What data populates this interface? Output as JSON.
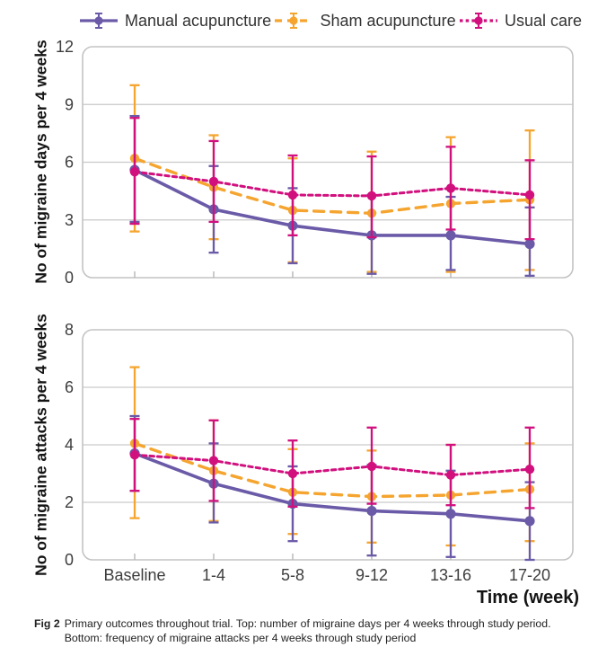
{
  "legend": [
    {
      "label": "Manual acupuncture",
      "color": "#6A5AA7",
      "style": "solid"
    },
    {
      "label": "Sham acupuncture",
      "color": "#F5A52F",
      "style": "dashed"
    },
    {
      "label": "Usual care",
      "color": "#D1107E",
      "style": "dotted"
    }
  ],
  "xlabel": "Time (week)",
  "caption": {
    "tag": "Fig 2",
    "text": "Primary outcomes throughout trial. Top: number of migraine days per 4 weeks through study period. Bottom: frequency of migraine attacks per 4 weeks through study period"
  },
  "colors": {
    "manual": "#6A5AA7",
    "sham": "#F5A52F",
    "usual": "#D1107E",
    "grid": "#c9c9c9",
    "border": "#c3c3c3"
  },
  "chart_data": [
    {
      "type": "line",
      "title": "",
      "ylabel": "No of migraine days per 4 weeks",
      "xlabel": "Time (week)",
      "categories": [
        "Baseline",
        "1-4",
        "5-8",
        "9-12",
        "13-16",
        "17-20"
      ],
      "ylim": [
        0,
        12
      ],
      "yticks": [
        0,
        3,
        6,
        9,
        12
      ],
      "grid": "horizontal",
      "legend_position": "top",
      "error_bars": true,
      "series": [
        {
          "name": "Manual acupuncture",
          "color": "#6A5AA7",
          "dash": "solid",
          "values": [
            5.6,
            3.55,
            2.7,
            2.2,
            2.2,
            1.75
          ],
          "lo": [
            2.9,
            1.3,
            0.75,
            0.2,
            0.4,
            0.1
          ],
          "hi": [
            8.4,
            5.8,
            4.65,
            4.3,
            4.2,
            3.65
          ]
        },
        {
          "name": "Sham acupuncture",
          "color": "#F5A52F",
          "dash": "dashed",
          "values": [
            6.2,
            4.7,
            3.5,
            3.35,
            3.85,
            4.05
          ],
          "lo": [
            2.4,
            2.0,
            0.8,
            0.3,
            0.3,
            0.4
          ],
          "hi": [
            10.0,
            7.4,
            6.2,
            6.55,
            7.3,
            7.65
          ]
        },
        {
          "name": "Usual care",
          "color": "#D1107E",
          "dash": "dotted",
          "values": [
            5.5,
            5.0,
            4.3,
            4.25,
            4.65,
            4.3
          ],
          "lo": [
            2.8,
            2.9,
            2.2,
            2.1,
            2.5,
            2.0
          ],
          "hi": [
            8.3,
            7.1,
            6.35,
            6.3,
            6.8,
            6.1
          ]
        }
      ]
    },
    {
      "type": "line",
      "title": "",
      "ylabel": "No of migraine attacks per 4 weeks",
      "xlabel": "Time (week)",
      "categories": [
        "Baseline",
        "1-4",
        "5-8",
        "9-12",
        "13-16",
        "17-20"
      ],
      "ylim": [
        0,
        8
      ],
      "yticks": [
        0,
        2,
        4,
        6,
        8
      ],
      "grid": "horizontal",
      "legend_position": "top",
      "error_bars": true,
      "series": [
        {
          "name": "Manual acupuncture",
          "color": "#6A5AA7",
          "dash": "solid",
          "values": [
            3.7,
            2.65,
            1.95,
            1.7,
            1.6,
            1.35
          ],
          "lo": [
            2.4,
            1.3,
            0.65,
            0.15,
            0.1,
            0.0
          ],
          "hi": [
            5.0,
            4.05,
            3.25,
            3.3,
            3.1,
            2.7
          ]
        },
        {
          "name": "Sham acupuncture",
          "color": "#F5A52F",
          "dash": "dashed",
          "values": [
            4.05,
            3.1,
            2.35,
            2.2,
            2.25,
            2.45
          ],
          "lo": [
            1.45,
            1.35,
            0.9,
            0.6,
            0.5,
            0.65
          ],
          "hi": [
            6.7,
            4.85,
            3.85,
            3.8,
            4.0,
            4.05
          ]
        },
        {
          "name": "Usual care",
          "color": "#D1107E",
          "dash": "dotted",
          "values": [
            3.65,
            3.45,
            3.0,
            3.25,
            2.95,
            3.15
          ],
          "lo": [
            2.4,
            2.05,
            1.85,
            1.95,
            1.9,
            1.8
          ],
          "hi": [
            4.9,
            4.85,
            4.15,
            4.6,
            4.0,
            4.6
          ]
        }
      ]
    }
  ]
}
